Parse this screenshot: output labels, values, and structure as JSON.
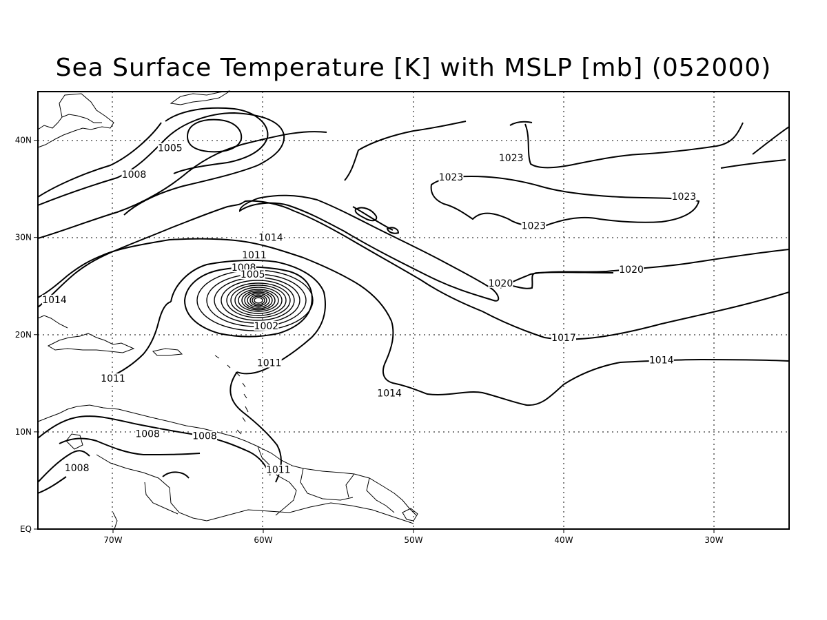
{
  "title": "Sea Surface Temperature [K] with MSLP [mb] (052000)",
  "chart_data": {
    "type": "contour-map",
    "title": "Sea Surface Temperature [K] with MSLP [mb] (052000)",
    "field": "MSLP",
    "units": "mb",
    "xlim": [
      -75,
      -25
    ],
    "ylim": [
      0,
      45
    ],
    "grid": true,
    "x_ticks": [
      {
        "value": -70,
        "label": "70W"
      },
      {
        "value": -60,
        "label": "60W"
      },
      {
        "value": -50,
        "label": "50W"
      },
      {
        "value": -40,
        "label": "40W"
      },
      {
        "value": -30,
        "label": "30W"
      }
    ],
    "y_ticks": [
      {
        "value": 0,
        "label": "EQ"
      },
      {
        "value": 10,
        "label": "10N"
      },
      {
        "value": 20,
        "label": "20N"
      },
      {
        "value": 30,
        "label": "30N"
      },
      {
        "value": 40,
        "label": "40N"
      }
    ],
    "contour_labels": [
      {
        "text": "1005",
        "lon": -66.2,
        "lat": 39.0
      },
      {
        "text": "1008",
        "lon": -68.6,
        "lat": 36.3
      },
      {
        "text": "1023",
        "lon": -43.5,
        "lat": 38.0
      },
      {
        "text": "1023",
        "lon": -47.5,
        "lat": 36.0
      },
      {
        "text": "1023",
        "lon": -32.0,
        "lat": 34.0
      },
      {
        "text": "1023",
        "lon": -42.0,
        "lat": 31.0
      },
      {
        "text": "1014",
        "lon": -59.5,
        "lat": 29.8
      },
      {
        "text": "1011",
        "lon": -60.6,
        "lat": 28.0
      },
      {
        "text": "1008",
        "lon": -61.3,
        "lat": 26.7
      },
      {
        "text": "1005",
        "lon": -60.7,
        "lat": 26.0
      },
      {
        "text": "1020",
        "lon": -35.5,
        "lat": 26.5
      },
      {
        "text": "1020",
        "lon": -44.2,
        "lat": 25.1
      },
      {
        "text": "1014",
        "lon": -73.9,
        "lat": 23.4
      },
      {
        "text": "1002",
        "lon": -59.8,
        "lat": 20.7
      },
      {
        "text": "1017",
        "lon": -40.0,
        "lat": 19.5
      },
      {
        "text": "1011",
        "lon": -59.6,
        "lat": 16.9
      },
      {
        "text": "1014",
        "lon": -33.5,
        "lat": 17.2
      },
      {
        "text": "1011",
        "lon": -70.0,
        "lat": 15.3
      },
      {
        "text": "1014",
        "lon": -51.6,
        "lat": 13.8
      },
      {
        "text": "1008",
        "lon": -67.7,
        "lat": 9.6
      },
      {
        "text": "1008",
        "lon": -63.9,
        "lat": 9.4
      },
      {
        "text": "1008",
        "lon": -72.4,
        "lat": 6.1
      },
      {
        "text": "1011",
        "lon": -59.0,
        "lat": 5.9
      }
    ],
    "low_center": {
      "lon": -60.2,
      "lat": 23.4
    }
  }
}
